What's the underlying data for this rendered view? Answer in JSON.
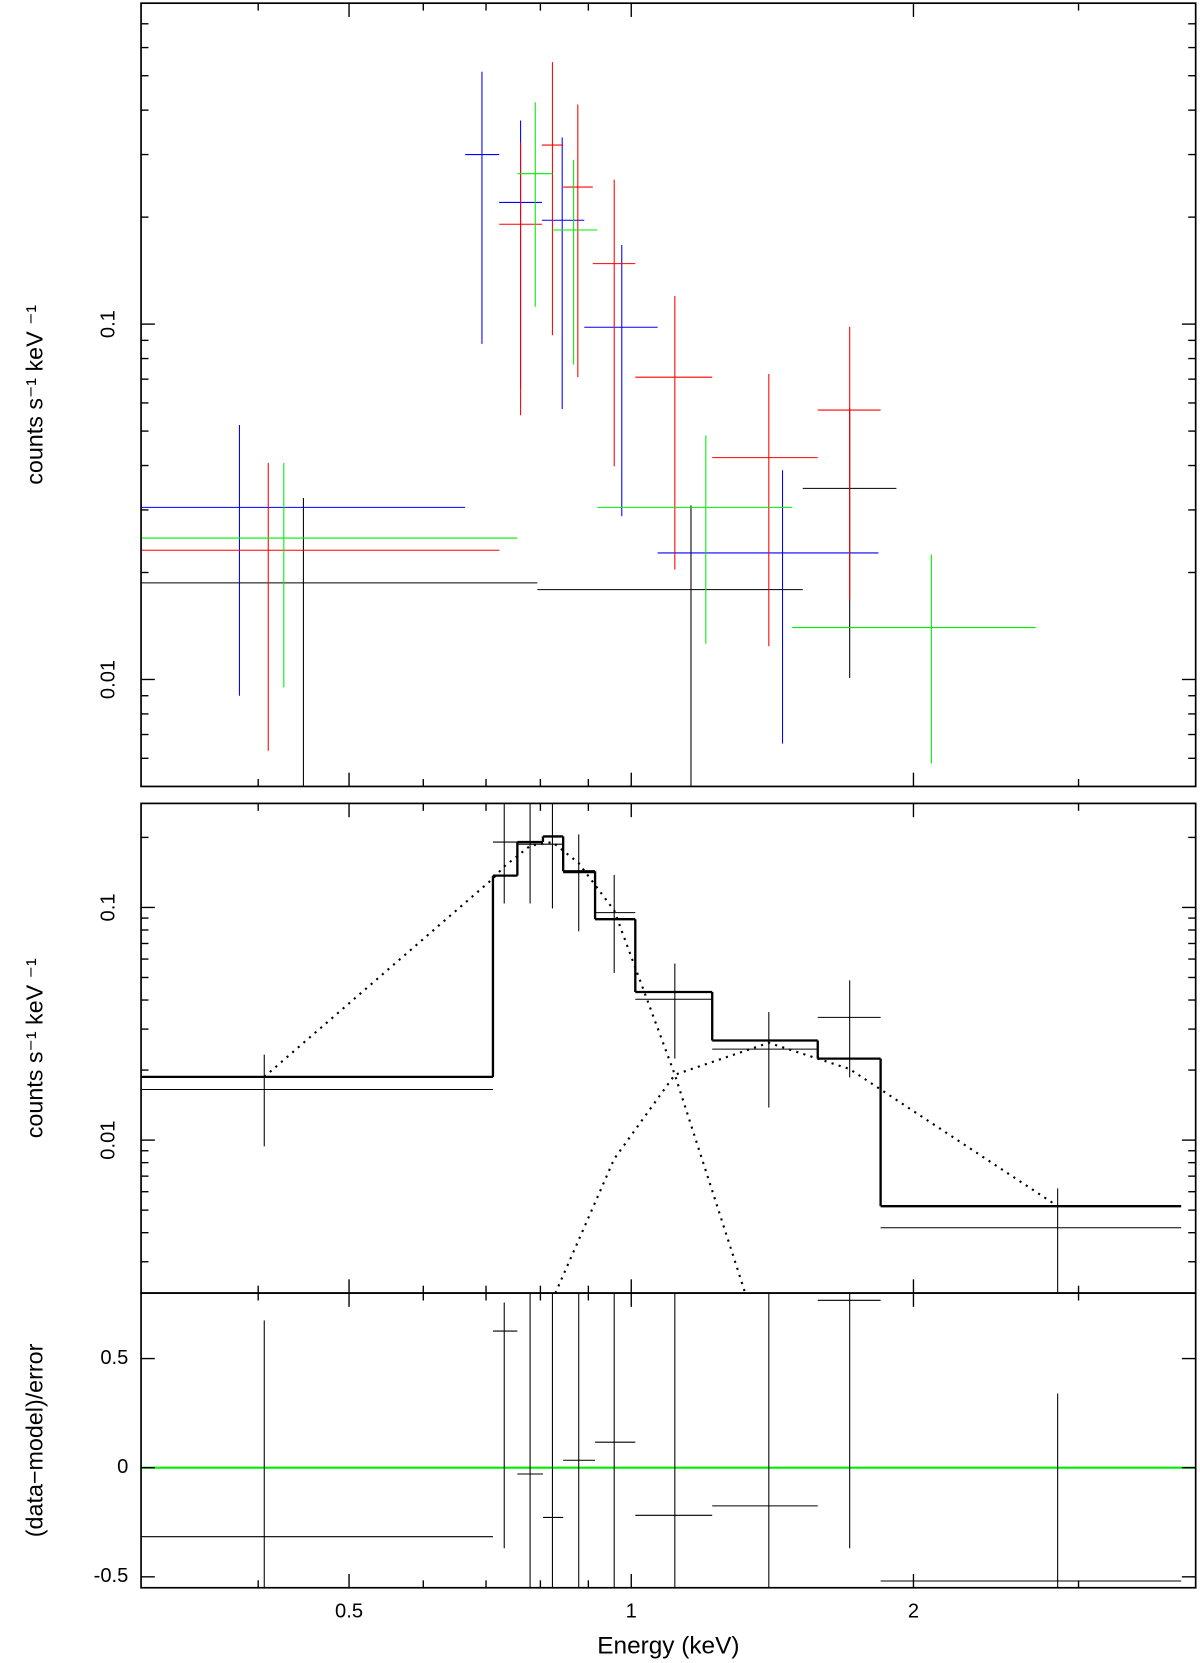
{
  "chart_data": [
    {
      "type": "errorbar",
      "xscale": "log",
      "yscale": "log",
      "ylabel": "counts s⁻¹ keV ⁻¹",
      "xlim": [
        0.3,
        4
      ],
      "ylim": [
        0.005,
        0.8
      ],
      "xticks": [
        0.5,
        1,
        2
      ],
      "xminor": [
        0.4,
        0.6,
        0.7,
        0.8,
        0.9,
        3
      ],
      "yticks": [
        0.01,
        0.1
      ],
      "yminor": [
        0.006,
        0.007,
        0.008,
        0.009,
        0.02,
        0.03,
        0.04,
        0.05,
        0.06,
        0.07,
        0.08,
        0.09,
        0.2,
        0.3,
        0.4,
        0.5,
        0.6,
        0.7
      ],
      "series": [
        {
          "color": "#000000",
          "x": [
            0.447,
            1.158,
            1.71
          ],
          "x_low": [
            0.3,
            0.794,
            1.524
          ],
          "x_high": [
            0.794,
            1.524,
            1.918
          ],
          "values": [
            0.0187,
            0.0179,
            0.0345
          ],
          "y_low": [
            0.004,
            0.004,
            0.0101
          ],
          "y_high": [
            0.0324,
            0.0309,
            0.0581
          ]
        },
        {
          "color": "#0000ff",
          "x": [
            0.382,
            0.693,
            0.762,
            0.844,
            0.977,
            1.45
          ],
          "x_low": [
            0.3,
            0.665,
            0.723,
            0.803,
            0.891,
            1.067
          ],
          "x_high": [
            0.665,
            0.723,
            0.803,
            0.891,
            1.067,
            1.835
          ],
          "values": [
            0.0305,
            0.3,
            0.22,
            0.196,
            0.098,
            0.0227
          ],
          "y_low": [
            0.009,
            0.088,
            0.0658,
            0.0577,
            0.0288,
            0.0066
          ],
          "y_high": [
            0.052,
            0.513,
            0.374,
            0.335,
            0.167,
            0.0388
          ]
        },
        {
          "color": "#ff0000",
          "x": [
            0.41,
            0.762,
            0.824,
            0.877,
            0.959,
            1.113,
            1.402,
            1.71
          ],
          "x_low": [
            0.3,
            0.723,
            0.803,
            0.846,
            0.91,
            1.01,
            1.22,
            1.581
          ],
          "x_high": [
            0.723,
            0.803,
            0.846,
            0.91,
            1.01,
            1.22,
            1.581,
            1.845
          ],
          "values": [
            0.0231,
            0.191,
            0.319,
            0.243,
            0.148,
            0.0709,
            0.0421,
            0.0573
          ],
          "y_low": [
            0.0063,
            0.0554,
            0.093,
            0.0709,
            0.0398,
            0.0204,
            0.0124,
            0.0167
          ],
          "y_high": [
            0.0407,
            0.324,
            0.546,
            0.415,
            0.255,
            0.12,
            0.0724,
            0.0983
          ]
        },
        {
          "color": "#00ee00",
          "x": [
            0.426,
            0.79,
            0.868,
            1.201,
            2.09
          ],
          "x_low": [
            0.3,
            0.756,
            0.824,
            0.92,
            1.485
          ],
          "x_high": [
            0.756,
            0.824,
            0.92,
            1.485,
            2.7
          ],
          "values": [
            0.025,
            0.265,
            0.184,
            0.0305,
            0.014
          ],
          "y_low": [
            0.0095,
            0.112,
            0.077,
            0.0126,
            0.0058
          ],
          "y_high": [
            0.0407,
            0.421,
            0.29,
            0.0486,
            0.0225
          ]
        }
      ]
    },
    {
      "type": "errorbar",
      "xscale": "log",
      "yscale": "log",
      "ylabel": "counts s⁻¹ keV ⁻¹",
      "xlim": [
        0.3,
        4
      ],
      "ylim": [
        0.0022,
        0.28
      ],
      "xticks": [
        0.5,
        1,
        2
      ],
      "xminor": [
        0.4,
        0.6,
        0.7,
        0.8,
        0.9,
        3
      ],
      "yticks": [
        0.01,
        0.1
      ],
      "yminor": [
        0.003,
        0.004,
        0.005,
        0.006,
        0.007,
        0.008,
        0.009,
        0.02,
        0.03,
        0.04,
        0.05,
        0.06,
        0.07,
        0.08,
        0.09,
        0.2
      ],
      "series": [
        {
          "color": "#000000",
          "x": [
            0.406,
            0.732,
            0.78,
            0.824,
            0.879,
            0.959,
            1.113,
            1.402,
            1.71,
            2.85
          ],
          "x_low": [
            0.3,
            0.712,
            0.756,
            0.805,
            0.846,
            0.915,
            1.01,
            1.22,
            1.581,
            1.845
          ],
          "x_high": [
            0.712,
            0.756,
            0.805,
            0.846,
            0.915,
            1.01,
            1.22,
            1.581,
            1.845,
            3.86
          ],
          "values": [
            0.0165,
            0.191,
            0.187,
            0.187,
            0.141,
            0.095,
            0.0403,
            0.0246,
            0.0337,
            0.0042
          ],
          "y_low": [
            0.0094,
            0.104,
            0.104,
            0.099,
            0.079,
            0.0523,
            0.0224,
            0.0138,
            0.0186,
            0.002
          ],
          "y_high": [
            0.0233,
            0.3,
            0.3,
            0.3,
            0.206,
            0.138,
            0.0574,
            0.0355,
            0.0486,
            0.0062
          ]
        }
      ],
      "model": {
        "color": "#000000",
        "bins": [
          0.3,
          0.712,
          0.756,
          0.805,
          0.846,
          0.915,
          1.01,
          1.22,
          1.581,
          1.845,
          3.86
        ],
        "values": [
          0.0187,
          0.137,
          0.191,
          0.202,
          0.143,
          0.089,
          0.0433,
          0.0268,
          0.0224,
          0.0052
        ]
      },
      "components": [
        {
          "x": [
            0.406,
            0.712,
            0.732,
            0.78,
            0.824,
            0.879,
            0.959,
            1.113,
            1.323
          ],
          "values": [
            0.0187,
            0.133,
            0.15,
            0.184,
            0.191,
            0.155,
            0.097,
            0.0191,
            0.0022
          ]
        },
        {
          "x": [
            0.83,
            0.959,
            1.113,
            1.402,
            1.71,
            2.85
          ],
          "values": [
            0.0022,
            0.0083,
            0.0191,
            0.0262,
            0.0202,
            0.0052
          ]
        }
      ]
    },
    {
      "type": "errorbar",
      "xscale": "linear-log",
      "yscale": "linear",
      "xlabel": "Energy (keV)",
      "ylabel": "(data−model)/error",
      "xlim": [
        0.3,
        4
      ],
      "ylim": [
        -0.55,
        0.8
      ],
      "xticks": [
        0.5,
        1,
        2
      ],
      "xminor": [
        0.4,
        0.6,
        0.7,
        0.8,
        0.9,
        3
      ],
      "yticks": [
        -0.5,
        0,
        0.5
      ],
      "hline": 0,
      "hline_color": "#00ee00",
      "series": [
        {
          "color": "#000000",
          "x": [
            0.406,
            0.732,
            0.78,
            0.824,
            0.879,
            0.959,
            1.113,
            1.402,
            1.71,
            2.85
          ],
          "x_low": [
            0.3,
            0.712,
            0.756,
            0.805,
            0.846,
            0.915,
            1.01,
            1.22,
            1.581,
            1.845
          ],
          "x_high": [
            0.712,
            0.756,
            0.805,
            0.846,
            0.915,
            1.01,
            1.22,
            1.581,
            1.845,
            3.86
          ],
          "values": [
            -0.316,
            0.626,
            -0.029,
            -0.228,
            0.034,
            0.117,
            -0.218,
            -0.175,
            0.767,
            -0.519
          ],
          "y_low": [
            -0.6,
            -0.369,
            -0.6,
            -0.6,
            -0.6,
            -0.6,
            -0.6,
            -0.6,
            -0.369,
            -0.6
          ],
          "y_high": [
            0.675,
            0.757,
            0.9,
            0.9,
            0.9,
            0.9,
            0.9,
            0.9,
            0.9,
            0.34
          ]
        }
      ]
    }
  ]
}
